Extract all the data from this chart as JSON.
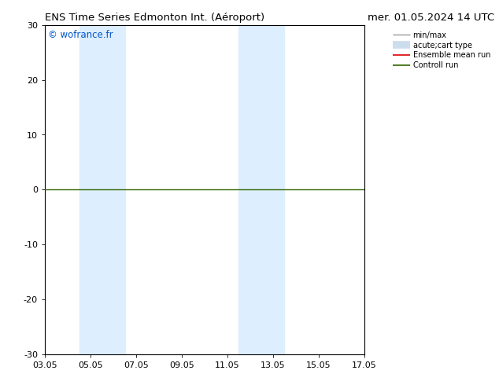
{
  "title_left": "ENS Time Series Edmonton Int. (Aéroport)",
  "title_right": "mer. 01.05.2024 14 UTC",
  "title_fontsize": 9.5,
  "watermark": "© wofrance.fr",
  "watermark_color": "#0055cc",
  "xtick_labels": [
    "03.05",
    "05.05",
    "07.05",
    "09.05",
    "11.05",
    "13.05",
    "15.05",
    "17.05"
  ],
  "xtick_positions": [
    0,
    2,
    4,
    6,
    8,
    10,
    12,
    14
  ],
  "ylim": [
    -30,
    30
  ],
  "ytick_positions": [
    -30,
    -20,
    -10,
    0,
    10,
    20,
    30
  ],
  "bg_color": "#ffffff",
  "plot_bg_color": "#ffffff",
  "zero_line_color": "#336600",
  "shaded_regions": [
    {
      "xstart": 1.5,
      "xend": 3.5,
      "color": "#ddeeff"
    },
    {
      "xstart": 8.5,
      "xend": 10.5,
      "color": "#ddeeff"
    }
  ],
  "legend_items": [
    {
      "label": "min/max",
      "color": "#999999",
      "lw": 1.0
    },
    {
      "label": "acute;cart type",
      "color": "#ccddee",
      "lw": 7
    },
    {
      "label": "Ensemble mean run",
      "color": "#dd0000",
      "lw": 1.2
    },
    {
      "label": "Controll run",
      "color": "#336600",
      "lw": 1.2
    }
  ],
  "tick_fontsize": 8,
  "xlim": [
    0,
    14
  ]
}
